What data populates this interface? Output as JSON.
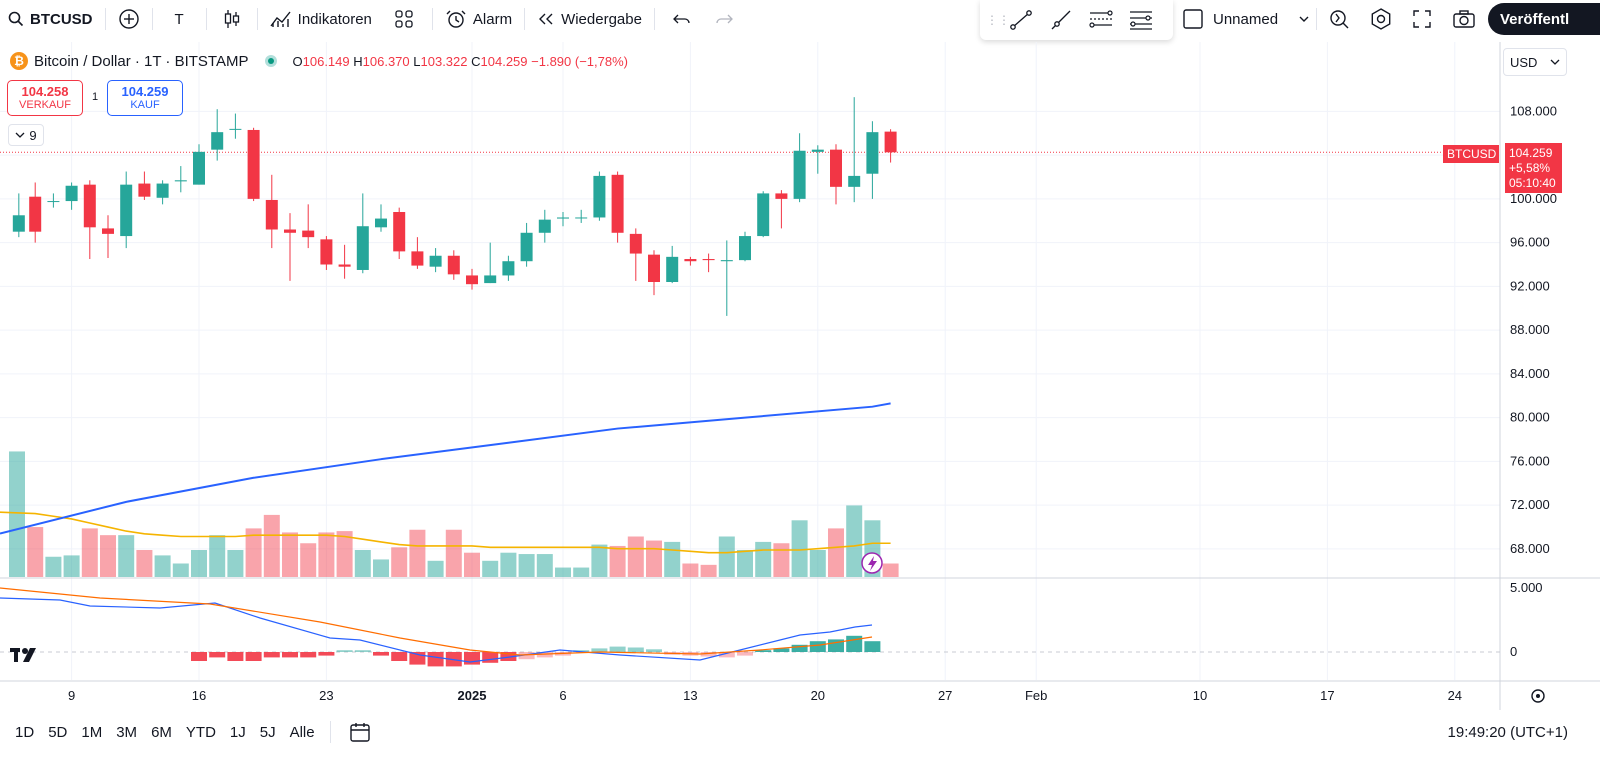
{
  "toolbar": {
    "symbol": "BTCUSD",
    "interval": "T",
    "indicators_label": "Indikatoren",
    "alarm_label": "Alarm",
    "replay_label": "Wiedergabe",
    "layout_name": "Unnamed",
    "publish_label": "Veröffentl"
  },
  "legend": {
    "title": "Bitcoin / Dollar · 1T · BITSTAMP",
    "o_label": "O",
    "o_value": "106.149",
    "h_label": "H",
    "h_value": "106.370",
    "l_label": "L",
    "l_value": "103.322",
    "c_label": "C",
    "c_value": "104.259",
    "change": "−1.890 (−1,78%)"
  },
  "trade": {
    "sell_price": "104.258",
    "sell_label": "VERKAUF",
    "spread": "1",
    "buy_price": "104.259",
    "buy_label": "KAUF"
  },
  "indicator_count": "9",
  "currency": "USD",
  "price_tag": {
    "symbol": "BTCUSD",
    "price": "104.259",
    "change": "+5,58%",
    "countdown": "05:10:40"
  },
  "price_axis": [
    "108.000",
    "104.000",
    "100.000",
    "96.000",
    "92.000",
    "88.000",
    "84.000",
    "80.000",
    "76.000",
    "72.000",
    "68.000"
  ],
  "macd_axis": [
    "5.000",
    "0"
  ],
  "time_axis": [
    "9",
    "16",
    "23",
    "2025",
    "6",
    "13",
    "20",
    "27",
    "Feb",
    "10",
    "17",
    "24"
  ],
  "ranges": [
    "1D",
    "5D",
    "1M",
    "3M",
    "6M",
    "YTD",
    "1J",
    "5J",
    "Alle"
  ],
  "clock": "19:49:20 (UTC+1)",
  "colors": {
    "up": "#26a69a",
    "down": "#f23645",
    "ma": "#2962ff",
    "vol_ma": "#f5b400",
    "macd_signal": "#ff6d00"
  },
  "chart_data": {
    "type": "candlestick",
    "title": "Bitcoin / Dollar · 1T · BITSTAMP",
    "ylim": [
      86000,
      110000
    ],
    "candles": [
      {
        "x": 0.1,
        "o": 97000,
        "h": 100500,
        "l": 96500,
        "c": 98500
      },
      {
        "x": 1,
        "o": 100200,
        "h": 101500,
        "l": 96000,
        "c": 97000
      },
      {
        "x": 2,
        "o": 99800,
        "h": 100500,
        "l": 99200,
        "c": 99800
      },
      {
        "x": 3,
        "o": 99800,
        "h": 101500,
        "l": 99000,
        "c": 101200
      },
      {
        "x": 4,
        "o": 101300,
        "h": 101700,
        "l": 94500,
        "c": 97400
      },
      {
        "x": 5,
        "o": 97300,
        "h": 98500,
        "l": 94600,
        "c": 96800
      },
      {
        "x": 6,
        "o": 96600,
        "h": 102500,
        "l": 95500,
        "c": 101300
      },
      {
        "x": 7,
        "o": 101400,
        "h": 102500,
        "l": 99900,
        "c": 100200
      },
      {
        "x": 8,
        "o": 100100,
        "h": 101700,
        "l": 99500,
        "c": 101400
      },
      {
        "x": 9,
        "o": 101600,
        "h": 103000,
        "l": 100600,
        "c": 101700
      },
      {
        "x": 10,
        "o": 101300,
        "h": 105000,
        "l": 101300,
        "c": 104300
      },
      {
        "x": 11,
        "o": 104500,
        "h": 108200,
        "l": 103500,
        "c": 106100
      },
      {
        "x": 12,
        "o": 106400,
        "h": 107800,
        "l": 105500,
        "c": 106400
      },
      {
        "x": 13,
        "o": 106300,
        "h": 106500,
        "l": 99800,
        "c": 100000
      },
      {
        "x": 14,
        "o": 99900,
        "h": 102200,
        "l": 95500,
        "c": 97200
      },
      {
        "x": 15,
        "o": 97200,
        "h": 98700,
        "l": 92500,
        "c": 96900
      },
      {
        "x": 16,
        "o": 97100,
        "h": 99500,
        "l": 95500,
        "c": 96500
      },
      {
        "x": 17,
        "o": 96300,
        "h": 96600,
        "l": 93500,
        "c": 94000
      },
      {
        "x": 18,
        "o": 94000,
        "h": 95800,
        "l": 92700,
        "c": 93800
      },
      {
        "x": 19,
        "o": 93500,
        "h": 100500,
        "l": 93200,
        "c": 97500
      },
      {
        "x": 20,
        "o": 97400,
        "h": 99500,
        "l": 97000,
        "c": 98200
      },
      {
        "x": 21,
        "o": 98800,
        "h": 99200,
        "l": 94500,
        "c": 95200
      },
      {
        "x": 22,
        "o": 95200,
        "h": 96500,
        "l": 93600,
        "c": 93900
      },
      {
        "x": 23,
        "o": 93800,
        "h": 95500,
        "l": 93300,
        "c": 94800
      },
      {
        "x": 24,
        "o": 94800,
        "h": 95300,
        "l": 92600,
        "c": 93100
      },
      {
        "x": 25,
        "o": 93000,
        "h": 93600,
        "l": 91700,
        "c": 92200
      },
      {
        "x": 26,
        "o": 92300,
        "h": 96000,
        "l": 92300,
        "c": 93000
      },
      {
        "x": 27,
        "o": 93000,
        "h": 94800,
        "l": 92500,
        "c": 94300
      },
      {
        "x": 28,
        "o": 94300,
        "h": 97800,
        "l": 93800,
        "c": 96900
      },
      {
        "x": 29,
        "o": 96900,
        "h": 99000,
        "l": 96000,
        "c": 98100
      },
      {
        "x": 30,
        "o": 98200,
        "h": 98800,
        "l": 97500,
        "c": 98300
      },
      {
        "x": 31,
        "o": 98300,
        "h": 99000,
        "l": 97800,
        "c": 98300
      },
      {
        "x": 32,
        "o": 98300,
        "h": 102500,
        "l": 98000,
        "c": 102100
      },
      {
        "x": 33,
        "o": 102200,
        "h": 102500,
        "l": 96000,
        "c": 96900
      },
      {
        "x": 34,
        "o": 96800,
        "h": 97300,
        "l": 92500,
        "c": 95000
      },
      {
        "x": 35,
        "o": 94900,
        "h": 95300,
        "l": 91200,
        "c": 92400
      },
      {
        "x": 36,
        "o": 92400,
        "h": 95700,
        "l": 92300,
        "c": 94700
      },
      {
        "x": 37,
        "o": 94500,
        "h": 94700,
        "l": 93900,
        "c": 94300
      },
      {
        "x": 38,
        "o": 94500,
        "h": 95000,
        "l": 93300,
        "c": 94400
      },
      {
        "x": 39,
        "o": 94300,
        "h": 96200,
        "l": 89300,
        "c": 94400
      },
      {
        "x": 40,
        "o": 94400,
        "h": 97000,
        "l": 94300,
        "c": 96600
      },
      {
        "x": 41,
        "o": 96600,
        "h": 100700,
        "l": 96500,
        "c": 100500
      },
      {
        "x": 42,
        "o": 100500,
        "h": 100800,
        "l": 97300,
        "c": 100000
      },
      {
        "x": 43,
        "o": 100000,
        "h": 106000,
        "l": 99700,
        "c": 104400
      },
      {
        "x": 44,
        "o": 104300,
        "h": 104900,
        "l": 102300,
        "c": 104500
      },
      {
        "x": 45,
        "o": 104500,
        "h": 105000,
        "l": 99500,
        "c": 101100
      },
      {
        "x": 46,
        "o": 101100,
        "h": 109300,
        "l": 99700,
        "c": 102100
      },
      {
        "x": 47,
        "o": 102300,
        "h": 107100,
        "l": 100000,
        "c": 106100
      },
      {
        "x": 48,
        "o": 106149,
        "h": 106370,
        "l": 103322,
        "c": 104259
      }
    ],
    "ma": [
      {
        "x": -1,
        "y": 69400
      },
      {
        "x": 6,
        "y": 72300
      },
      {
        "x": 13,
        "y": 74500
      },
      {
        "x": 20,
        "y": 76200
      },
      {
        "x": 27,
        "y": 77700
      },
      {
        "x": 33,
        "y": 79000
      },
      {
        "x": 40,
        "y": 80000
      },
      {
        "x": 47,
        "y": 81000
      },
      {
        "x": 48,
        "y": 81300
      }
    ],
    "volume": [
      0.93,
      0.37,
      0.15,
      0.16,
      0.36,
      0.31,
      0.31,
      0.2,
      0.16,
      0.1,
      0.2,
      0.31,
      0.2,
      0.36,
      0.46,
      0.33,
      0.25,
      0.33,
      0.34,
      0.2,
      0.13,
      0.22,
      0.35,
      0.12,
      0.35,
      0.18,
      0.12,
      0.18,
      0.17,
      0.17,
      0.07,
      0.07,
      0.24,
      0.23,
      0.3,
      0.27,
      0.26,
      0.1,
      0.09,
      0.3,
      0.2,
      0.26,
      0.25,
      0.42,
      0.2,
      0.36,
      0.53,
      0.42,
      0.1
    ],
    "macd_hist": [
      -0.5,
      -0.3,
      -0.5,
      -0.5,
      -0.3,
      -0.3,
      -0.3,
      -0.2,
      0.1,
      0.1,
      -0.2,
      -0.5,
      -0.7,
      -0.8,
      -0.8,
      -0.7,
      -0.6,
      -0.5,
      -0.4,
      -0.3,
      -0.2,
      0.1,
      0.2,
      0.3,
      0.25,
      0.15,
      -0.15,
      -0.2,
      -0.25,
      -0.3,
      -0.2,
      0.1,
      0.2,
      0.4,
      0.6,
      0.7,
      0.9,
      0.6
    ],
    "time_ticks": [
      {
        "label": "9",
        "x": 3
      },
      {
        "label": "16",
        "x": 10
      },
      {
        "label": "23",
        "x": 17
      },
      {
        "label": "2025",
        "x": 25
      },
      {
        "label": "6",
        "x": 30
      },
      {
        "label": "13",
        "x": 37
      },
      {
        "label": "20",
        "x": 44
      },
      {
        "label": "27",
        "x": 51
      },
      {
        "label": "Feb",
        "x": 56
      },
      {
        "label": "10",
        "x": 65
      },
      {
        "label": "17",
        "x": 72
      },
      {
        "label": "24",
        "x": 79
      }
    ]
  }
}
